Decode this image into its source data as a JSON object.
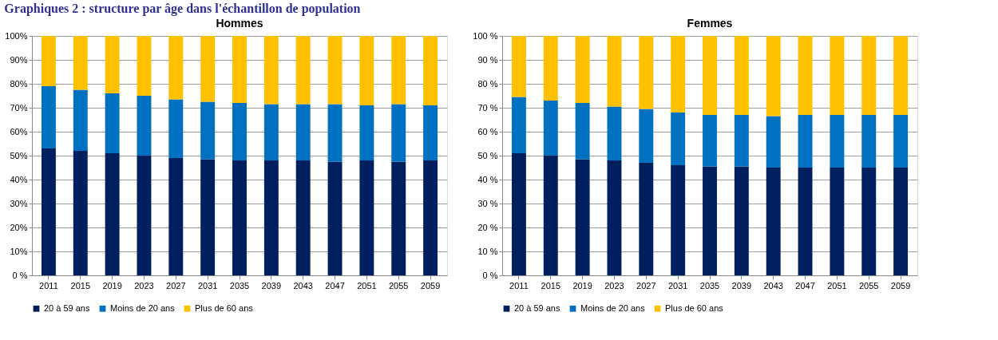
{
  "chart_data": [
    {
      "type": "bar",
      "title": "Hommes",
      "annotations": [
        "Graphiques 2 : structure par âge dans l'échantillon de population"
      ],
      "categories": [
        "2011",
        "2015",
        "2019",
        "2023",
        "2027",
        "2031",
        "2035",
        "2039",
        "2043",
        "2047",
        "2051",
        "2055",
        "2059"
      ],
      "stacked": true,
      "grid": "y",
      "legend": "bottom",
      "ylim": [
        0,
        100
      ],
      "yticks": [
        {
          "value": 0,
          "label": "0 %"
        },
        {
          "value": 10,
          "label": "10%"
        },
        {
          "value": 20,
          "label": "20%"
        },
        {
          "value": 30,
          "label": "30%"
        },
        {
          "value": 40,
          "label": "40%"
        },
        {
          "value": 50,
          "label": "50%"
        },
        {
          "value": 60,
          "label": "60%"
        },
        {
          "value": 70,
          "label": "70%"
        },
        {
          "value": 80,
          "label": "80%"
        },
        {
          "value": 90,
          "label": "90%"
        },
        {
          "value": 100,
          "label": "100%"
        }
      ],
      "series": [
        {
          "name": "20 à 59 ans",
          "color": "#001f5f",
          "values": [
            53,
            52,
            51,
            50,
            49,
            48.5,
            48,
            48,
            48,
            47.5,
            48,
            47.5,
            48
          ]
        },
        {
          "name": "Moins de 20 ans",
          "color": "#0070c0",
          "values": [
            26,
            25.5,
            25,
            25,
            24.5,
            24,
            24,
            23.5,
            23.5,
            24,
            23,
            24,
            23
          ]
        },
        {
          "name": "Plus de 60 ans",
          "color": "#ffc000",
          "values": [
            21,
            22.5,
            24,
            25,
            26.5,
            27.5,
            28,
            28.5,
            28.5,
            28.5,
            29,
            28.5,
            29
          ]
        }
      ]
    },
    {
      "type": "bar",
      "title": "Femmes",
      "categories": [
        "2011",
        "2015",
        "2019",
        "2023",
        "2027",
        "2031",
        "2035",
        "2039",
        "2043",
        "2047",
        "2051",
        "2055",
        "2059"
      ],
      "stacked": true,
      "grid": "y",
      "legend": "bottom",
      "ylim": [
        0,
        100
      ],
      "yticks": [
        {
          "value": 0,
          "label": "0 %"
        },
        {
          "value": 10,
          "label": "10 %"
        },
        {
          "value": 20,
          "label": "20 %"
        },
        {
          "value": 30,
          "label": "30 %"
        },
        {
          "value": 40,
          "label": "40 %"
        },
        {
          "value": 50,
          "label": "50 %"
        },
        {
          "value": 60,
          "label": "60 %"
        },
        {
          "value": 70,
          "label": "70 %"
        },
        {
          "value": 80,
          "label": "80 %"
        },
        {
          "value": 90,
          "label": "90 %"
        },
        {
          "value": 100,
          "label": "100 %"
        }
      ],
      "series": [
        {
          "name": "20 à 59 ans",
          "color": "#001f5f",
          "values": [
            51,
            50,
            48.5,
            48,
            47,
            46,
            45.5,
            45.5,
            45,
            45,
            45,
            45,
            45
          ]
        },
        {
          "name": "Moins de 20 ans",
          "color": "#0070c0",
          "values": [
            23.5,
            23,
            23.5,
            22.5,
            22.5,
            22,
            21.5,
            21.5,
            21.5,
            22,
            22,
            22,
            22
          ]
        },
        {
          "name": "Plus de 60 ans",
          "color": "#ffc000",
          "values": [
            25.5,
            27,
            28,
            29.5,
            30.5,
            32,
            33,
            33,
            33.5,
            33,
            33,
            33,
            33
          ]
        }
      ]
    }
  ]
}
